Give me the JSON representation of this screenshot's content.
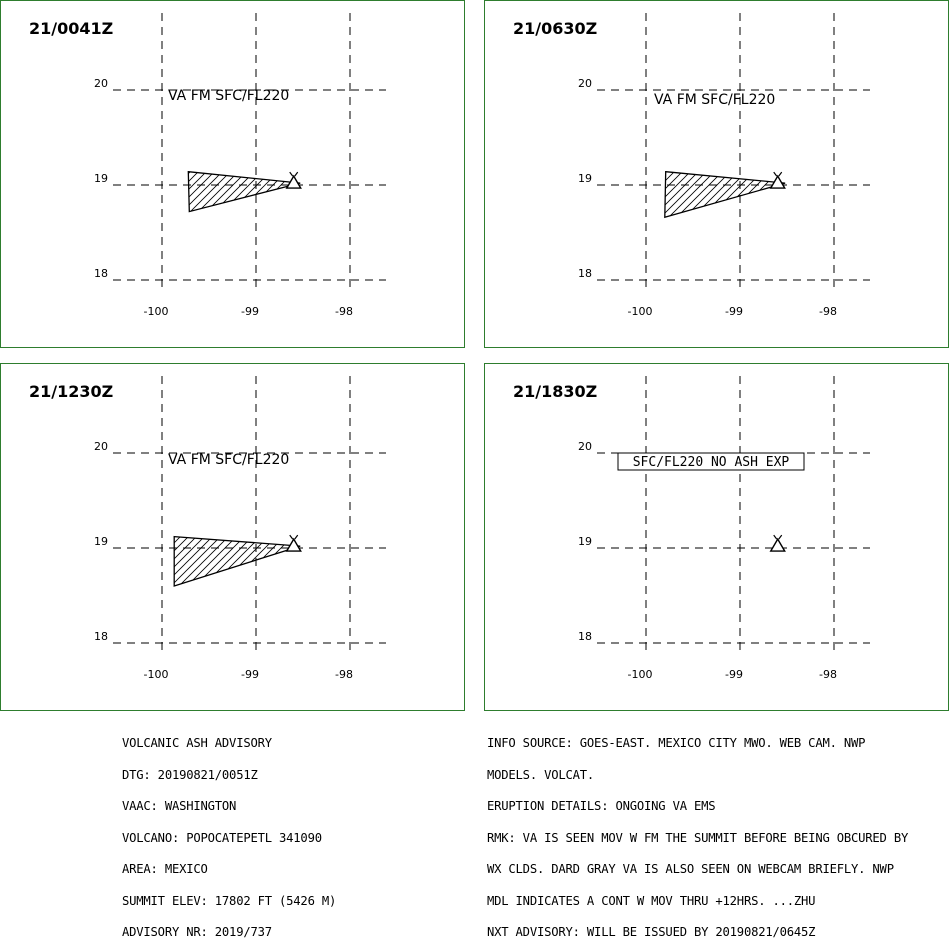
{
  "panels": [
    {
      "time": "21/0041Z",
      "annotation": "VA FM SFC/FL220",
      "annotation_boxed": false,
      "lat_labels": [
        "20",
        "19",
        "18"
      ],
      "lon_labels": [
        "-100",
        "-99",
        "-98"
      ],
      "ash_polygon": [
        [
          -99.72,
          19.14
        ],
        [
          -98.53,
          19.02
        ],
        [
          -99.71,
          18.72
        ]
      ],
      "volcano": [
        -98.62,
        19.02
      ]
    },
    {
      "time": "21/0630Z",
      "annotation": "VA FM SFC/FL220",
      "annotation_boxed": false,
      "lat_labels": [
        "20",
        "19",
        "18"
      ],
      "lon_labels": [
        "-100",
        "-99",
        "-98"
      ],
      "ash_polygon": [
        [
          -99.79,
          19.14
        ],
        [
          -98.52,
          19.02
        ],
        [
          -99.8,
          18.66
        ]
      ],
      "volcano": [
        -98.62,
        19.02
      ]
    },
    {
      "time": "21/1230Z",
      "annotation": "VA FM SFC/FL220",
      "annotation_boxed": false,
      "lat_labels": [
        "20",
        "19",
        "18"
      ],
      "lon_labels": [
        "-100",
        "-99",
        "-98"
      ],
      "ash_polygon": [
        [
          -99.87,
          19.12
        ],
        [
          -98.53,
          19.02
        ],
        [
          -99.87,
          18.6
        ]
      ],
      "volcano": [
        -98.62,
        19.02
      ]
    },
    {
      "time": "21/1830Z",
      "annotation": "SFC/FL220 NO ASH EXP",
      "annotation_boxed": true,
      "lat_labels": [
        "20",
        "19",
        "18"
      ],
      "lon_labels": [
        "-100",
        "-99",
        "-98"
      ],
      "ash_polygon": [],
      "volcano": [
        -98.62,
        19.02
      ]
    }
  ],
  "advisory_left": [
    "VOLCANIC ASH ADVISORY",
    "DTG: 20190821/0051Z",
    "VAAC: WASHINGTON",
    "VOLCANO: POPOCATEPETL 341090",
    "AREA: MEXICO",
    "SUMMIT ELEV: 17802 FT (5426 M)",
    "ADVISORY NR: 2019/737"
  ],
  "advisory_right": [
    "INFO SOURCE: GOES-EAST. MEXICO CITY MWO. WEB CAM. NWP",
    "MODELS. VOLCAT.",
    "ERUPTION DETAILS: ONGOING VA EMS",
    "RMK: VA IS SEEN MOV W FM THE SUMMIT BEFORE BEING OBCURED BY",
    "WX CLDS. DARD GRAY VA IS ALSO SEEN ON WEBCAM BRIEFLY. NWP",
    "MDL INDICATES A CONT W MOV THRU +12HRS. ...ZHU",
    "NXT ADVISORY: WILL BE ISSUED BY 20190821/0645Z"
  ],
  "colors": {
    "panel_border": "#2e7d2e",
    "lines": "#000000"
  }
}
